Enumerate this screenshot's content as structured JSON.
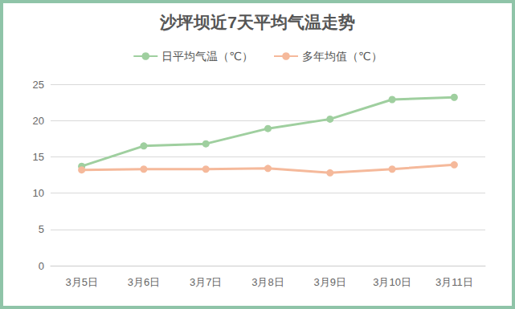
{
  "chart_data": {
    "type": "line",
    "title": "沙坪坝近7天平均气温走势",
    "categories": [
      "3月5日",
      "3月6日",
      "3月7日",
      "3月8日",
      "3月9日",
      "3月10日",
      "3月11日"
    ],
    "series": [
      {
        "name": "日平均气温（℃）",
        "color": "#9fcf9f",
        "values": [
          13.7,
          16.5,
          16.8,
          18.9,
          20.2,
          22.9,
          23.2
        ]
      },
      {
        "name": "多年均值（℃）",
        "color": "#f5b99b",
        "values": [
          13.2,
          13.3,
          13.3,
          13.4,
          12.8,
          13.3,
          13.9
        ]
      }
    ],
    "ylim": [
      0,
      25
    ],
    "yticks": [
      0,
      5,
      10,
      15,
      20,
      25
    ],
    "grid": true,
    "legend": "top",
    "marker": "circle"
  }
}
